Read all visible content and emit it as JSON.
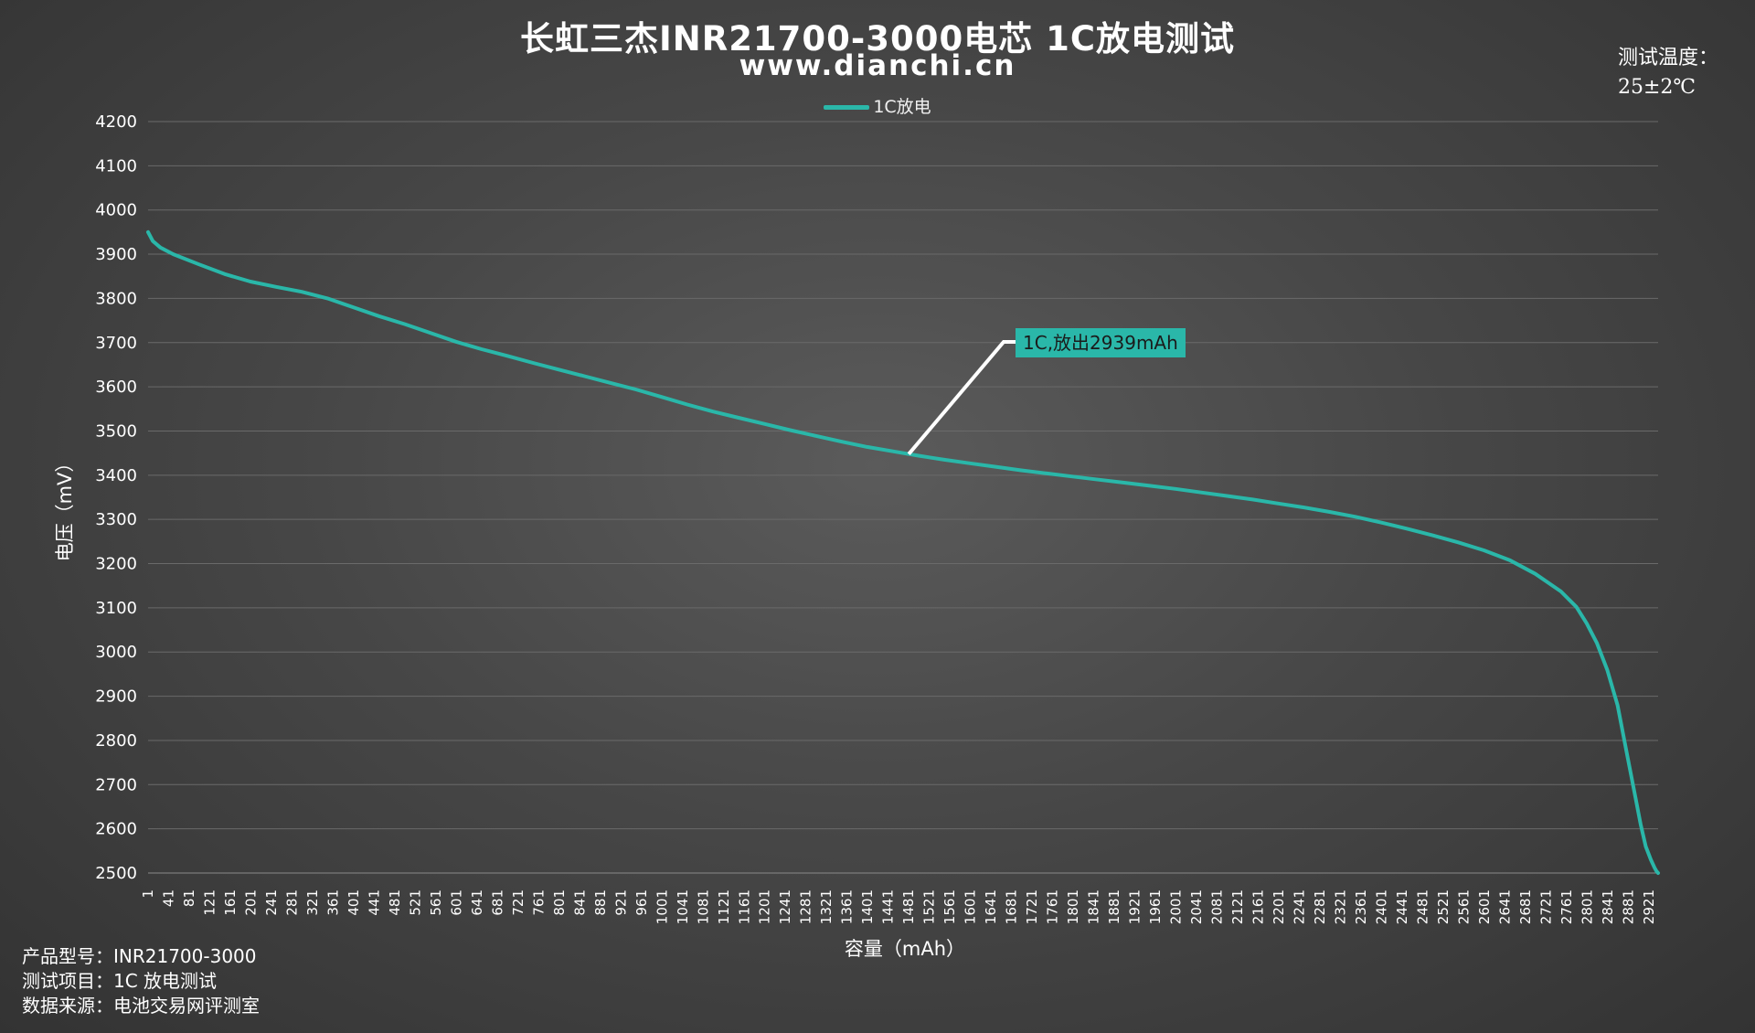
{
  "chart_data": {
    "type": "line",
    "title": "长虹三杰INR21700-3000电芯 1C放电测试",
    "subtitle": "www.dianchi.cn",
    "xlabel": "容量（mAh）",
    "ylabel": "电压（mV）",
    "ylim": [
      2500,
      4200
    ],
    "yticks": [
      2500,
      2600,
      2700,
      2800,
      2900,
      3000,
      3100,
      3200,
      3300,
      3400,
      3500,
      3600,
      3700,
      3800,
      3900,
      4000,
      4100,
      4200
    ],
    "xlim": [
      1,
      2939
    ],
    "xticks": [
      1,
      41,
      81,
      121,
      161,
      201,
      241,
      281,
      321,
      361,
      401,
      441,
      481,
      521,
      561,
      601,
      641,
      681,
      721,
      761,
      801,
      841,
      881,
      921,
      961,
      1001,
      1041,
      1081,
      1121,
      1161,
      1201,
      1241,
      1281,
      1321,
      1361,
      1401,
      1441,
      1481,
      1521,
      1561,
      1601,
      1641,
      1681,
      1721,
      1761,
      1801,
      1841,
      1881,
      1921,
      1961,
      2001,
      2041,
      2081,
      2121,
      2161,
      2201,
      2241,
      2281,
      2321,
      2361,
      2401,
      2441,
      2481,
      2521,
      2561,
      2601,
      2641,
      2681,
      2721,
      2761,
      2801,
      2841,
      2881,
      2921
    ],
    "grid": true,
    "legend_position": "top",
    "series": [
      {
        "name": "1C放电",
        "color": "#2ab7a9",
        "x": [
          1,
          10,
          25,
          50,
          100,
          150,
          200,
          250,
          300,
          350,
          400,
          450,
          500,
          550,
          600,
          650,
          700,
          750,
          800,
          850,
          900,
          950,
          1000,
          1050,
          1100,
          1150,
          1200,
          1250,
          1300,
          1350,
          1400,
          1450,
          1500,
          1550,
          1600,
          1650,
          1700,
          1750,
          1800,
          1850,
          1900,
          1950,
          2000,
          2050,
          2100,
          2150,
          2200,
          2250,
          2300,
          2350,
          2400,
          2450,
          2500,
          2550,
          2600,
          2650,
          2700,
          2750,
          2780,
          2800,
          2820,
          2840,
          2860,
          2880,
          2895,
          2905,
          2915,
          2925,
          2932,
          2936,
          2939
        ],
        "y": [
          3950,
          3930,
          3915,
          3900,
          3877,
          3855,
          3838,
          3826,
          3815,
          3800,
          3780,
          3760,
          3742,
          3722,
          3702,
          3685,
          3670,
          3654,
          3639,
          3624,
          3609,
          3594,
          3577,
          3560,
          3544,
          3530,
          3516,
          3502,
          3489,
          3476,
          3464,
          3454,
          3444,
          3435,
          3427,
          3419,
          3411,
          3404,
          3397,
          3390,
          3383,
          3376,
          3369,
          3361,
          3353,
          3345,
          3336,
          3327,
          3317,
          3306,
          3293,
          3279,
          3264,
          3248,
          3230,
          3208,
          3177,
          3137,
          3102,
          3065,
          3020,
          2960,
          2880,
          2760,
          2670,
          2610,
          2560,
          2530,
          2512,
          2504,
          2500
        ]
      }
    ],
    "annotation": {
      "text": "1C,放出2939mAh",
      "color": "#2ab7a9"
    }
  },
  "header": {
    "temp_label": "测试温度：",
    "temp_value": "25±2℃"
  },
  "footer": {
    "model": "产品型号：INR21700-3000",
    "item": "测试项目：1C 放电测试",
    "source": "数据来源：电池交易网评测室"
  }
}
